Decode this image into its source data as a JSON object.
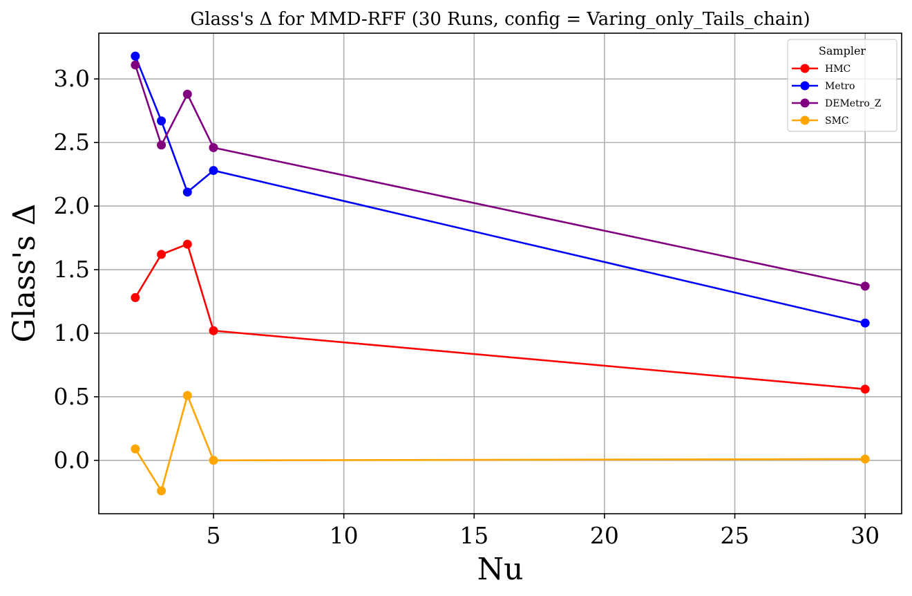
{
  "chart_data": {
    "type": "line",
    "title": "Glass's Δ for MMD-RFF (30 Runs, config = Varing_only_Tails_chain)",
    "xlabel": "Nu",
    "ylabel": "Glass's Δ",
    "x": [
      2,
      3,
      4,
      5,
      30
    ],
    "xlim": [
      0.6,
      31.4
    ],
    "ylim": [
      -0.42,
      3.36
    ],
    "xticks": [
      5,
      10,
      15,
      20,
      25,
      30
    ],
    "xtick_labels": [
      "5",
      "10",
      "15",
      "20",
      "25",
      "30"
    ],
    "yticks": [
      0.0,
      0.5,
      1.0,
      1.5,
      2.0,
      2.5,
      3.0
    ],
    "ytick_labels": [
      "0.0",
      "0.5",
      "1.0",
      "1.5",
      "2.0",
      "2.5",
      "3.0"
    ],
    "grid": true,
    "legend": {
      "title": "Sampler",
      "placement": "top-right"
    },
    "series": [
      {
        "name": "HMC",
        "color": "#ff0000",
        "values": [
          1.28,
          1.62,
          1.7,
          1.02,
          0.56
        ]
      },
      {
        "name": "Metro",
        "color": "#0000ff",
        "values": [
          3.18,
          2.67,
          2.11,
          2.28,
          1.08
        ]
      },
      {
        "name": "DEMetro_Z",
        "color": "#800080",
        "values": [
          3.11,
          2.48,
          2.88,
          2.46,
          1.37
        ]
      },
      {
        "name": "SMC",
        "color": "#ffa500",
        "values": [
          0.09,
          -0.24,
          0.51,
          0.0,
          0.01
        ]
      }
    ]
  }
}
